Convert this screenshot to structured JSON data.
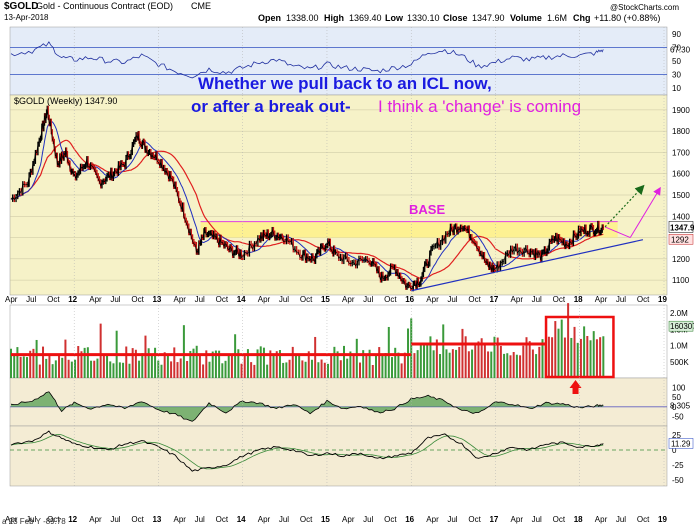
{
  "header": {
    "symbol": "$GOLD",
    "name": "Gold - Continuous Contract (EOD)",
    "exchange": "CME",
    "date": "13-Apr-2018",
    "open_label": "Open",
    "open": "1338.00",
    "high_label": "High",
    "high": "1369.40",
    "low_label": "Low",
    "low": "1330.10",
    "close_label": "Close",
    "close": "1347.90",
    "volume_label": "Volume",
    "volume": "1.6M",
    "chg_label": "Chg",
    "chg": "+11.80 (+0.88%)",
    "source": "@StockCharts.com"
  },
  "annotations": {
    "line1": "Whether we pull back to an ICL now,",
    "line2a": "or after a break out-",
    "line2b": "I think a 'change' is coming",
    "base": "BASE"
  },
  "colors": {
    "price_bg": "#f6f2c8",
    "rsi_bg": "#e4ecf8",
    "volume_bg": "#ffffff",
    "osc_bg": "#f4ecd4",
    "annotation_blue": "#1a1ae0",
    "annotation_magenta": "#e020e0",
    "ma_red": "#e02020",
    "ma_blue": "#2030c0",
    "base_band": "#fff080",
    "volume_green": "#3a9a3a",
    "volume_red": "#d03030"
  },
  "chart_data": {
    "type": "line",
    "title": "$GOLD (Weekly) 1347.90",
    "x_ticks": [
      "Apr",
      "Jul",
      "Oct",
      "12",
      "Apr",
      "Jul",
      "Oct",
      "13",
      "Apr",
      "Jul",
      "Oct",
      "14",
      "Apr",
      "Jul",
      "Oct",
      "15",
      "Apr",
      "Jul",
      "Oct",
      "16",
      "Apr",
      "Jul",
      "Oct",
      "17",
      "Apr",
      "Jul",
      "Oct",
      "18",
      "Apr",
      "Jul",
      "Oct",
      "19"
    ],
    "price_y_ticks": [
      1100,
      1200,
      1300,
      1400,
      1500,
      1600,
      1700,
      1800,
      1900
    ],
    "price_ylim": [
      1030,
      1970
    ],
    "price_series": {
      "name": "Price",
      "x": [
        2011.25,
        2011.45,
        2011.6,
        2011.68,
        2011.8,
        2011.9,
        2012.0,
        2012.15,
        2012.3,
        2012.45,
        2012.6,
        2012.75,
        2012.85,
        2013.0,
        2013.15,
        2013.3,
        2013.45,
        2013.55,
        2013.7,
        2013.85,
        2014.0,
        2014.2,
        2014.35,
        2014.5,
        2014.7,
        2014.85,
        2015.0,
        2015.1,
        2015.3,
        2015.5,
        2015.65,
        2015.8,
        2015.95,
        2016.1,
        2016.25,
        2016.45,
        2016.6,
        2016.75,
        2016.9,
        2017.0,
        2017.2,
        2017.4,
        2017.55,
        2017.7,
        2017.85,
        2018.0,
        2018.15,
        2018.28
      ],
      "y": [
        1480,
        1560,
        1780,
        1900,
        1650,
        1700,
        1580,
        1660,
        1560,
        1600,
        1650,
        1780,
        1720,
        1670,
        1580,
        1420,
        1230,
        1320,
        1290,
        1240,
        1220,
        1300,
        1320,
        1300,
        1220,
        1200,
        1280,
        1220,
        1180,
        1200,
        1110,
        1160,
        1070,
        1100,
        1240,
        1330,
        1360,
        1290,
        1170,
        1150,
        1250,
        1240,
        1210,
        1300,
        1270,
        1330,
        1340,
        1347.9
      ]
    },
    "base_zone": [
      1300,
      1375
    ],
    "current_price": "1347.90",
    "axis_label_2": "1292",
    "rsi": {
      "label": "RSI",
      "y_ticks": [
        10,
        30,
        50,
        70,
        90
      ],
      "current": "67.30",
      "x": [
        2011.25,
        2011.5,
        2011.7,
        2011.85,
        2012.0,
        2012.2,
        2012.4,
        2012.6,
        2012.8,
        2013.0,
        2013.2,
        2013.4,
        2013.6,
        2013.8,
        2014.0,
        2014.2,
        2014.4,
        2014.6,
        2014.8,
        2015.0,
        2015.2,
        2015.4,
        2015.6,
        2015.8,
        2016.0,
        2016.2,
        2016.4,
        2016.6,
        2016.8,
        2017.0,
        2017.2,
        2017.4,
        2017.6,
        2017.8,
        2018.0,
        2018.2,
        2018.28
      ],
      "y": [
        60,
        65,
        75,
        55,
        52,
        55,
        50,
        48,
        58,
        45,
        35,
        28,
        38,
        33,
        40,
        48,
        52,
        42,
        38,
        45,
        40,
        38,
        35,
        40,
        45,
        63,
        66,
        58,
        42,
        48,
        55,
        52,
        55,
        58,
        58,
        62,
        67
      ]
    },
    "volume": {
      "y_ticks": [
        "2.0M",
        "1.5M",
        "1.0M",
        "500K"
      ],
      "current": "1603077",
      "avg_levels": [
        {
          "from": 2011.25,
          "to": 2016.0,
          "value": 0.72
        },
        {
          "from": 2016.0,
          "to": 2017.6,
          "value": 1.05
        }
      ]
    },
    "osc1": {
      "y_ticks": [
        100,
        50,
        0,
        -50
      ],
      "current": "8.305",
      "x": [
        2011.25,
        2011.5,
        2011.7,
        2011.85,
        2012.0,
        2012.2,
        2012.4,
        2012.6,
        2012.8,
        2013.0,
        2013.2,
        2013.4,
        2013.6,
        2013.8,
        2014.0,
        2014.2,
        2014.4,
        2014.6,
        2014.8,
        2015.0,
        2015.2,
        2015.4,
        2015.6,
        2015.8,
        2016.0,
        2016.2,
        2016.4,
        2016.6,
        2016.8,
        2017.0,
        2017.2,
        2017.4,
        2017.6,
        2017.8,
        2018.0,
        2018.2,
        2018.28
      ],
      "y": [
        10,
        30,
        80,
        -20,
        20,
        -10,
        15,
        -10,
        30,
        -15,
        -40,
        -80,
        20,
        -30,
        30,
        20,
        -10,
        15,
        -35,
        30,
        -10,
        5,
        -30,
        -10,
        40,
        55,
        30,
        -20,
        -35,
        25,
        15,
        -10,
        20,
        15,
        -5,
        5,
        8
      ]
    },
    "osc2": {
      "y_ticks": [
        25,
        0,
        -25,
        -50
      ],
      "current": "11.29",
      "corner_label": "a 23 Feb Y -89.78",
      "x": [
        2011.25,
        2011.5,
        2011.7,
        2011.85,
        2012.0,
        2012.2,
        2012.4,
        2012.6,
        2012.8,
        2013.0,
        2013.2,
        2013.4,
        2013.6,
        2013.8,
        2014.0,
        2014.2,
        2014.4,
        2014.6,
        2014.8,
        2015.0,
        2015.2,
        2015.4,
        2015.6,
        2015.8,
        2016.0,
        2016.2,
        2016.4,
        2016.6,
        2016.8,
        2017.0,
        2017.2,
        2017.4,
        2017.6,
        2017.8,
        2018.0,
        2018.2,
        2018.28
      ],
      "y": [
        10,
        15,
        30,
        20,
        10,
        5,
        0,
        10,
        15,
        5,
        -10,
        -35,
        -30,
        -25,
        -10,
        0,
        5,
        0,
        -10,
        -5,
        -10,
        -5,
        -15,
        -10,
        -5,
        20,
        25,
        10,
        -15,
        -5,
        5,
        0,
        10,
        12,
        5,
        8,
        11
      ]
    },
    "xlabel": "",
    "ylabel": ""
  }
}
